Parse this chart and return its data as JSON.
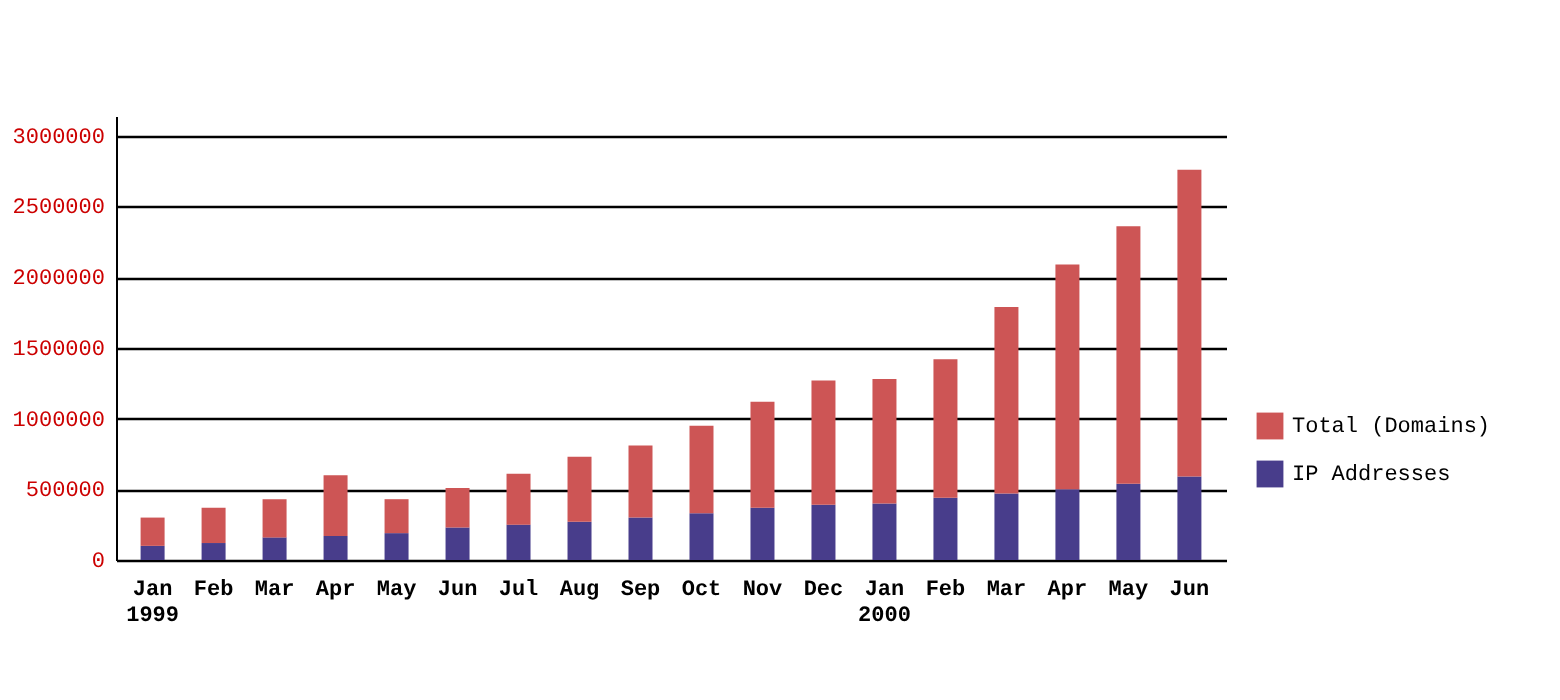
{
  "chart_data": {
    "type": "bar",
    "stacked": true,
    "categories": [
      "Jan\n1999",
      "Feb",
      "Mar",
      "Apr",
      "May",
      "Jun",
      "Jul",
      "Aug",
      "Sep",
      "Oct",
      "Nov",
      "Dec",
      "Jan\n2000",
      "Feb",
      "Mar",
      "Apr",
      "May",
      "Jun"
    ],
    "series": [
      {
        "name": "IP Addresses",
        "color": "#483d8b",
        "values": [
          100000,
          120000,
          160000,
          170000,
          190000,
          230000,
          250000,
          270000,
          300000,
          330000,
          370000,
          390000,
          400000,
          440000,
          470000,
          500000,
          540000,
          590000
        ]
      },
      {
        "name": "Total (Domains)",
        "color": "#cd5555",
        "values": [
          200000,
          250000,
          270000,
          430000,
          240000,
          280000,
          360000,
          460000,
          510000,
          620000,
          750000,
          880000,
          880000,
          980000,
          1320000,
          1590000,
          1820000,
          2170000
        ]
      }
    ],
    "ylim": [
      0,
      3140000
    ],
    "yticks": [
      0,
      500000,
      1000000,
      1500000,
      2000000,
      2500000,
      3000000
    ],
    "grid": "y",
    "legend": "right"
  }
}
